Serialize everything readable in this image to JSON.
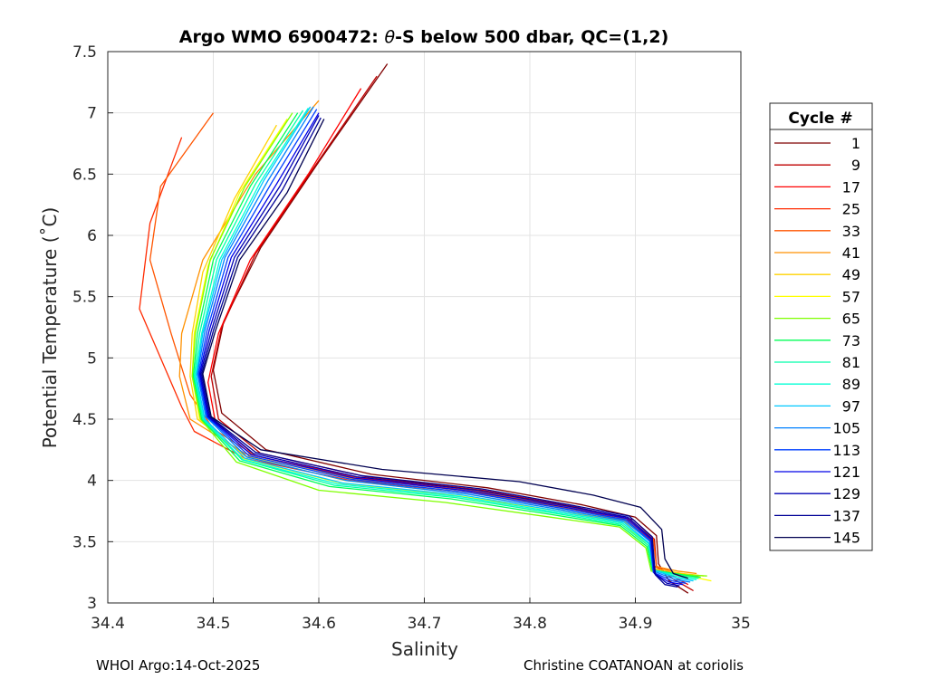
{
  "chart_data": {
    "type": "line",
    "title_prefix": "Argo WMO 6900472: ",
    "title_theta": "θ",
    "title_suffix": "-S below 500 dbar,  QC=(1,2)",
    "xlabel": "Salinity",
    "ylabel": "Potential Temperature (˚C)",
    "xlim": [
      34.4,
      35.0
    ],
    "ylim": [
      3.0,
      7.5
    ],
    "xticks": [
      "34.4",
      "34.5",
      "34.6",
      "34.7",
      "34.8",
      "34.9",
      "35"
    ],
    "yticks": [
      "3",
      "3.5",
      "4",
      "4.5",
      "5",
      "5.5",
      "6",
      "6.5",
      "7",
      "7.5"
    ],
    "grid": true,
    "legend": {
      "title": "Cycle #",
      "placement": "right",
      "entries": [
        {
          "label": "1",
          "color": "#7f0000"
        },
        {
          "label": "9",
          "color": "#bf0000"
        },
        {
          "label": "17",
          "color": "#ff0000"
        },
        {
          "label": "25",
          "color": "#ff2a00"
        },
        {
          "label": "33",
          "color": "#ff5500"
        },
        {
          "label": "41",
          "color": "#ff9100"
        },
        {
          "label": "49",
          "color": "#ffd200"
        },
        {
          "label": "57",
          "color": "#ffff00"
        },
        {
          "label": "65",
          "color": "#7fff00"
        },
        {
          "label": "73",
          "color": "#00ff55"
        },
        {
          "label": "81",
          "color": "#00ffaa"
        },
        {
          "label": "89",
          "color": "#00ffd4"
        },
        {
          "label": "97",
          "color": "#00c8ff"
        },
        {
          "label": "105",
          "color": "#0080ff"
        },
        {
          "label": "113",
          "color": "#0040ff"
        },
        {
          "label": "121",
          "color": "#0000e6"
        },
        {
          "label": "129",
          "color": "#0000b4"
        },
        {
          "label": "137",
          "color": "#000096"
        },
        {
          "label": "145",
          "color": "#000050"
        }
      ]
    },
    "series": [
      {
        "name": "1",
        "color": "#7f0000",
        "s": [
          34.665,
          34.6,
          34.545,
          34.51,
          34.5,
          34.508,
          34.55,
          34.65,
          34.76,
          34.85,
          34.9,
          34.92,
          34.922,
          34.932,
          34.95
        ],
        "t": [
          7.4,
          6.6,
          5.9,
          5.3,
          4.9,
          4.55,
          4.25,
          4.05,
          3.94,
          3.8,
          3.7,
          3.55,
          3.32,
          3.18,
          3.08
        ]
      },
      {
        "name": "9",
        "color": "#bf0000",
        "s": [
          34.655,
          34.595,
          34.54,
          34.508,
          34.498,
          34.505,
          34.545,
          34.645,
          34.755,
          34.845,
          34.898,
          34.918,
          34.92,
          34.935,
          34.955
        ],
        "t": [
          7.3,
          6.55,
          5.85,
          5.25,
          4.85,
          4.5,
          4.22,
          4.03,
          3.92,
          3.78,
          3.68,
          3.52,
          3.3,
          3.2,
          3.1
        ]
      },
      {
        "name": "17",
        "color": "#ff0000",
        "s": [
          34.64,
          34.59,
          34.535,
          34.505,
          34.495,
          34.502,
          34.54,
          34.64,
          34.75,
          34.84,
          34.895,
          34.916,
          34.918,
          34.935,
          34.95
        ],
        "t": [
          7.2,
          6.5,
          5.8,
          5.2,
          4.8,
          4.48,
          4.2,
          4.02,
          3.91,
          3.77,
          3.67,
          3.5,
          3.28,
          3.22,
          3.15
        ]
      },
      {
        "name": "25",
        "color": "#ff2a00",
        "s": [
          34.47,
          34.44,
          34.43,
          34.455,
          34.47,
          34.482,
          34.53,
          34.63,
          34.745,
          34.838,
          34.893,
          34.915,
          34.917,
          34.935,
          34.95
        ],
        "t": [
          6.8,
          6.1,
          5.4,
          4.9,
          4.6,
          4.4,
          4.18,
          4.0,
          3.9,
          3.77,
          3.67,
          3.5,
          3.3,
          3.24,
          3.2
        ]
      },
      {
        "name": "33",
        "color": "#ff5500",
        "s": [
          34.5,
          34.45,
          34.44,
          34.46,
          34.478,
          34.5,
          34.54,
          34.64,
          34.75,
          34.84,
          34.895,
          34.917,
          34.92,
          34.94,
          34.96
        ],
        "t": [
          7.0,
          6.4,
          5.8,
          5.2,
          4.7,
          4.42,
          4.2,
          4.01,
          3.91,
          3.78,
          3.68,
          3.52,
          3.3,
          3.24,
          3.22
        ]
      },
      {
        "name": "41",
        "color": "#ff9100",
        "s": [
          34.6,
          34.54,
          34.49,
          34.47,
          34.468,
          34.478,
          34.53,
          34.63,
          34.745,
          34.835,
          34.892,
          34.915,
          34.918,
          34.94,
          34.958
        ],
        "t": [
          7.1,
          6.5,
          5.8,
          5.2,
          4.85,
          4.5,
          4.22,
          4.02,
          3.91,
          3.77,
          3.67,
          3.5,
          3.3,
          3.26,
          3.24
        ]
      },
      {
        "name": "49",
        "color": "#ffd200",
        "s": [
          34.56,
          34.52,
          34.49,
          34.48,
          34.478,
          34.485,
          34.53,
          34.625,
          34.74,
          34.83,
          34.89,
          34.913,
          34.917,
          34.945,
          34.965
        ],
        "t": [
          6.9,
          6.3,
          5.7,
          5.2,
          4.85,
          4.5,
          4.2,
          4.0,
          3.89,
          3.76,
          3.66,
          3.48,
          3.28,
          3.24,
          3.22
        ]
      },
      {
        "name": "57",
        "color": "#ffff00",
        "s": [
          34.57,
          34.525,
          34.495,
          34.482,
          34.48,
          34.487,
          34.528,
          34.62,
          34.735,
          34.828,
          34.888,
          34.912,
          34.916,
          34.95,
          34.972
        ],
        "t": [
          6.95,
          6.35,
          5.75,
          5.2,
          4.85,
          4.5,
          4.18,
          3.98,
          3.87,
          3.75,
          3.65,
          3.47,
          3.27,
          3.22,
          3.18
        ]
      },
      {
        "name": "65",
        "color": "#7fff00",
        "s": [
          34.575,
          34.53,
          34.497,
          34.483,
          34.48,
          34.488,
          34.522,
          34.6,
          34.72,
          34.82,
          34.885,
          34.91,
          34.915,
          34.948,
          34.968
        ],
        "t": [
          7.0,
          6.4,
          5.8,
          5.2,
          4.85,
          4.5,
          4.15,
          3.92,
          3.82,
          3.7,
          3.62,
          3.45,
          3.26,
          3.23,
          3.22
        ]
      },
      {
        "name": "73",
        "color": "#00ff55",
        "s": [
          34.58,
          34.535,
          34.5,
          34.485,
          34.481,
          34.489,
          34.525,
          34.61,
          34.725,
          34.822,
          34.886,
          34.911,
          34.916,
          34.945,
          34.962
        ],
        "t": [
          7.0,
          6.4,
          5.8,
          5.2,
          4.85,
          4.5,
          4.16,
          3.95,
          3.85,
          3.72,
          3.63,
          3.46,
          3.27,
          3.23,
          3.21
        ]
      },
      {
        "name": "81",
        "color": "#00ffaa",
        "s": [
          34.585,
          34.54,
          34.503,
          34.487,
          34.482,
          34.49,
          34.527,
          34.615,
          34.73,
          34.825,
          34.887,
          34.912,
          34.917,
          34.945,
          34.96
        ],
        "t": [
          7.02,
          6.42,
          5.8,
          5.2,
          4.85,
          4.5,
          4.17,
          3.96,
          3.86,
          3.73,
          3.64,
          3.47,
          3.27,
          3.22,
          3.2
        ]
      },
      {
        "name": "89",
        "color": "#00ffd4",
        "s": [
          34.59,
          34.545,
          34.506,
          34.489,
          34.483,
          34.491,
          34.528,
          34.618,
          34.732,
          34.826,
          34.888,
          34.913,
          34.917,
          34.942,
          34.958
        ],
        "t": [
          7.04,
          6.44,
          5.8,
          5.2,
          4.85,
          4.5,
          4.17,
          3.97,
          3.87,
          3.74,
          3.65,
          3.48,
          3.27,
          3.21,
          3.19
        ]
      },
      {
        "name": "97",
        "color": "#00c8ff",
        "s": [
          34.592,
          34.548,
          34.508,
          34.49,
          34.484,
          34.492,
          34.53,
          34.622,
          34.736,
          34.828,
          34.889,
          34.913,
          34.917,
          34.94,
          34.955
        ],
        "t": [
          7.05,
          6.45,
          5.8,
          5.2,
          4.85,
          4.5,
          4.18,
          3.98,
          3.88,
          3.75,
          3.66,
          3.49,
          3.27,
          3.2,
          3.18
        ]
      },
      {
        "name": "105",
        "color": "#0080ff",
        "s": [
          34.595,
          34.552,
          34.511,
          34.492,
          34.485,
          34.493,
          34.532,
          34.626,
          34.74,
          34.83,
          34.89,
          34.914,
          34.917,
          34.938,
          34.952
        ],
        "t": [
          7.05,
          6.45,
          5.82,
          5.22,
          4.87,
          4.52,
          4.19,
          4.0,
          3.89,
          3.76,
          3.67,
          3.5,
          3.26,
          3.19,
          3.17
        ]
      },
      {
        "name": "113",
        "color": "#0040ff",
        "s": [
          34.598,
          34.556,
          34.514,
          34.494,
          34.486,
          34.494,
          34.534,
          34.63,
          34.743,
          34.832,
          34.891,
          34.914,
          34.917,
          34.935,
          34.948
        ],
        "t": [
          7.03,
          6.44,
          5.82,
          5.22,
          4.87,
          4.52,
          4.2,
          4.01,
          3.9,
          3.77,
          3.68,
          3.51,
          3.25,
          3.18,
          3.16
        ]
      },
      {
        "name": "121",
        "color": "#0000e6",
        "s": [
          34.6,
          34.56,
          34.517,
          34.496,
          34.487,
          34.495,
          34.536,
          34.633,
          34.746,
          34.834,
          34.892,
          34.915,
          34.918,
          34.932,
          34.945
        ],
        "t": [
          7.0,
          6.42,
          5.82,
          5.22,
          4.87,
          4.52,
          4.21,
          4.02,
          3.91,
          3.78,
          3.69,
          3.52,
          3.24,
          3.17,
          3.15
        ]
      },
      {
        "name": "129",
        "color": "#0000b4",
        "s": [
          34.6,
          34.563,
          34.52,
          34.498,
          34.488,
          34.496,
          34.538,
          34.636,
          34.75,
          34.836,
          34.893,
          34.915,
          34.918,
          34.93,
          34.942
        ],
        "t": [
          6.98,
          6.4,
          5.82,
          5.22,
          4.87,
          4.52,
          4.22,
          4.03,
          3.92,
          3.79,
          3.7,
          3.53,
          3.24,
          3.16,
          3.14
        ]
      },
      {
        "name": "137",
        "color": "#000096",
        "s": [
          34.602,
          34.566,
          34.523,
          34.5,
          34.489,
          34.497,
          34.54,
          34.64,
          34.755,
          34.838,
          34.894,
          34.916,
          34.919,
          34.928,
          34.94
        ],
        "t": [
          6.96,
          6.38,
          5.82,
          5.22,
          4.87,
          4.52,
          4.23,
          4.04,
          3.93,
          3.8,
          3.71,
          3.54,
          3.23,
          3.15,
          3.13
        ]
      },
      {
        "name": "145",
        "color": "#000050",
        "s": [
          34.605,
          34.57,
          34.525,
          34.502,
          34.49,
          34.498,
          34.545,
          34.66,
          34.79,
          34.86,
          34.905,
          34.925,
          34.928,
          34.936,
          34.95
        ],
        "t": [
          6.95,
          6.35,
          5.8,
          5.22,
          4.87,
          4.52,
          4.25,
          4.09,
          3.99,
          3.88,
          3.78,
          3.6,
          3.36,
          3.24,
          3.2
        ]
      }
    ]
  },
  "footer": {
    "left": "WHOI Argo:14-Oct-2025",
    "right": "Christine COATANOAN at coriolis"
  }
}
